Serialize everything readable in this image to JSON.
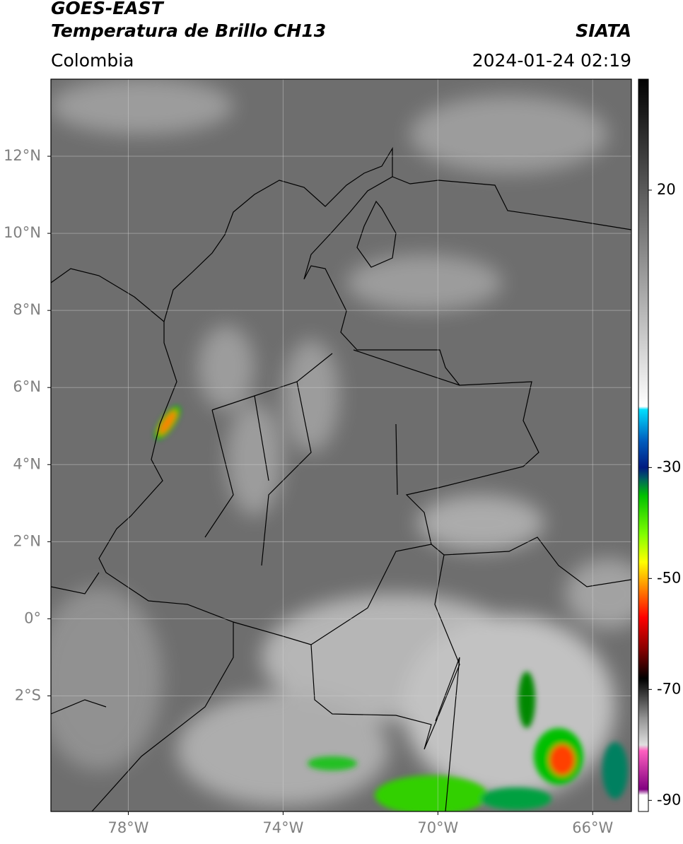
{
  "header": {
    "title": "GOES-EAST",
    "subtitle": "Temperatura de Brillo CH13",
    "source": "SIATA",
    "region": "Colombia",
    "datetime": "2024-01-24 02:19"
  },
  "map": {
    "lon_range": [
      -80,
      -65
    ],
    "lat_range": [
      -5,
      14
    ],
    "grid": true,
    "lon_ticks": [
      {
        "value": -78,
        "label": "78°W"
      },
      {
        "value": -74,
        "label": "74°W"
      },
      {
        "value": -70,
        "label": "70°W"
      },
      {
        "value": -66,
        "label": "66°W"
      }
    ],
    "lat_ticks": [
      {
        "value": 12,
        "label": "12°N"
      },
      {
        "value": 10,
        "label": "10°N"
      },
      {
        "value": 8,
        "label": "8°N"
      },
      {
        "value": 6,
        "label": "6°N"
      },
      {
        "value": 4,
        "label": "4°N"
      },
      {
        "value": 2,
        "label": "2°N"
      },
      {
        "value": 0,
        "label": "0°"
      },
      {
        "value": -2,
        "label": "2°S"
      }
    ]
  },
  "colorbar": {
    "range": [
      -92,
      40
    ],
    "ticks": [
      20,
      -30,
      -50,
      -70,
      -90
    ],
    "stops": [
      {
        "value": 40,
        "color": "#000000"
      },
      {
        "value": 20,
        "color": "#5a5a5a"
      },
      {
        "value": -19,
        "color": "#ffffff"
      },
      {
        "value": -19.5,
        "color": "#00e0ff"
      },
      {
        "value": -25,
        "color": "#0060c0"
      },
      {
        "value": -30,
        "color": "#001a80"
      },
      {
        "value": -32,
        "color": "#006060"
      },
      {
        "value": -35,
        "color": "#00c000"
      },
      {
        "value": -42,
        "color": "#80ff00"
      },
      {
        "value": -47,
        "color": "#ffff00"
      },
      {
        "value": -52,
        "color": "#ff8000"
      },
      {
        "value": -57,
        "color": "#ff0000"
      },
      {
        "value": -63,
        "color": "#800000"
      },
      {
        "value": -68,
        "color": "#000000"
      },
      {
        "value": -75,
        "color": "#909090"
      },
      {
        "value": -80,
        "color": "#e0e0e0"
      },
      {
        "value": -81,
        "color": "#ff60c0"
      },
      {
        "value": -88,
        "color": "#800080"
      },
      {
        "value": -89,
        "color": "#ffffff"
      },
      {
        "value": -92,
        "color": "#ffffff"
      }
    ]
  }
}
